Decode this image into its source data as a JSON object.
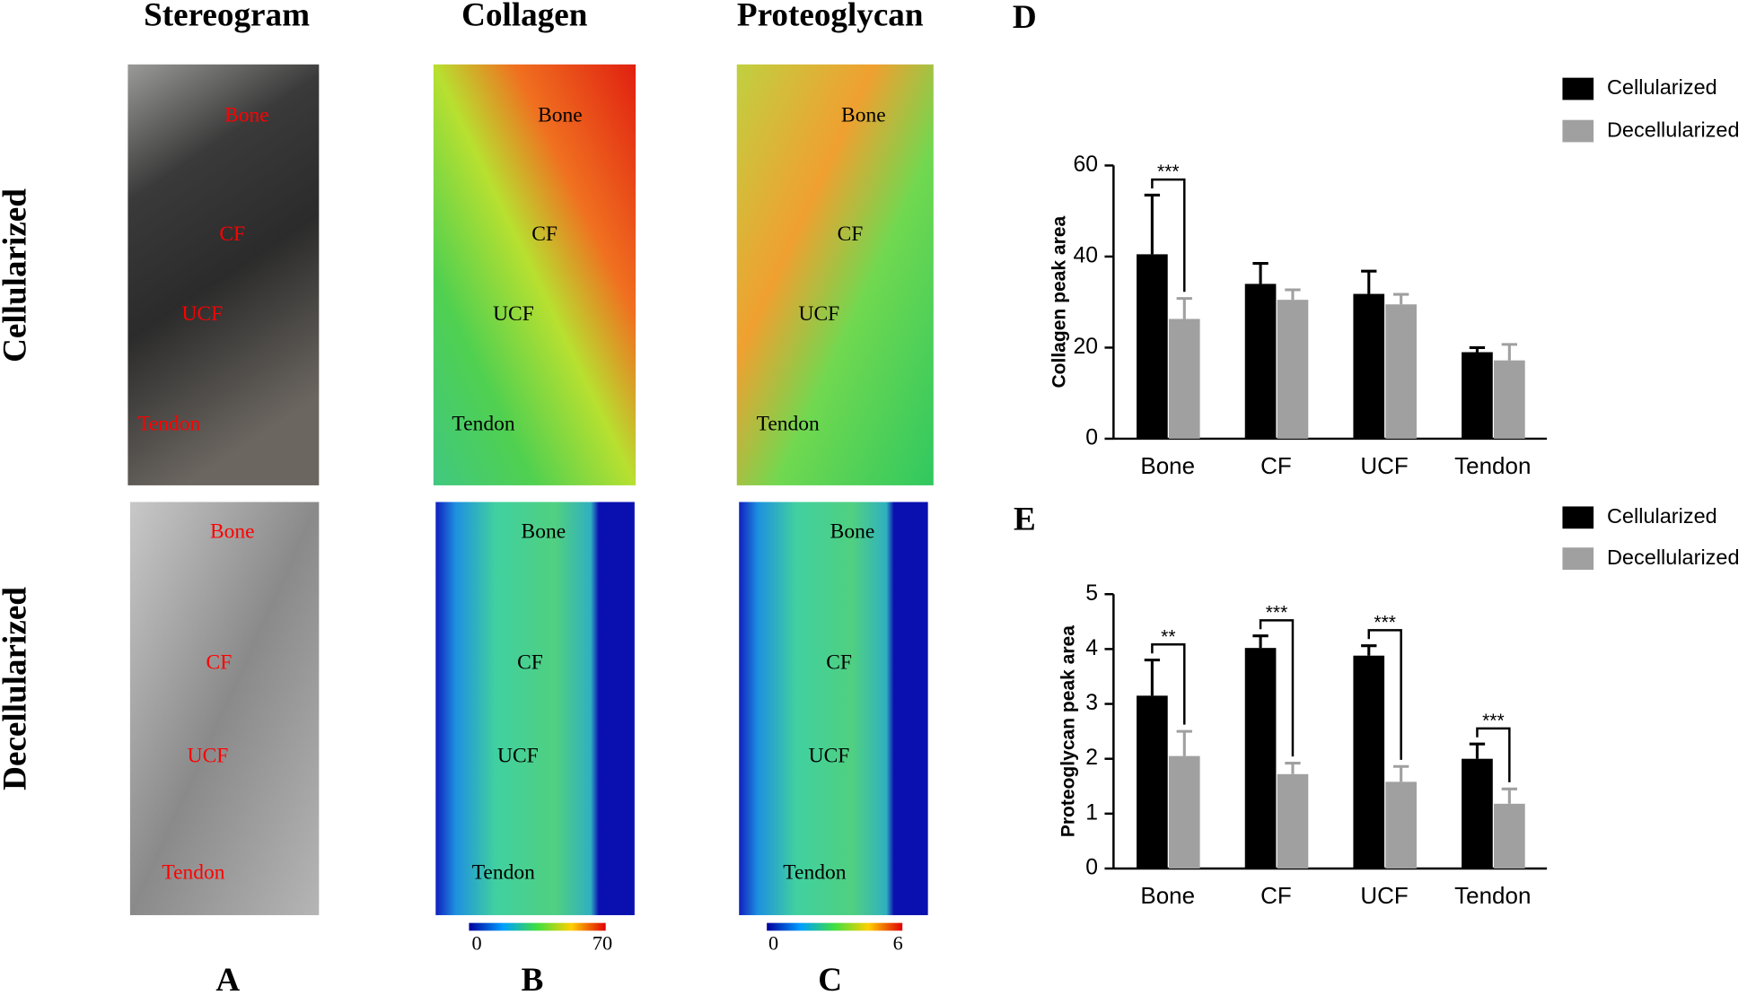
{
  "figure": {
    "columns": [
      "Stereogram",
      "Collagen",
      "Proteoglycan"
    ],
    "rows": [
      "Cellularized",
      "Decellularized"
    ],
    "panels": [
      "A",
      "B",
      "C",
      "D",
      "E"
    ],
    "regions": [
      "Bone",
      "CF",
      "UCF",
      "Tendon"
    ],
    "colorbars": [
      {
        "min": 0,
        "max": 70
      },
      {
        "min": 0,
        "max": 6
      }
    ]
  },
  "chart_data": [
    {
      "type": "bar",
      "ylabel": "Collagen peak area",
      "categories": [
        "Bone",
        "CF",
        "UCF",
        "Tendon"
      ],
      "series": [
        {
          "name": "Cellularized",
          "color": "#000000",
          "values": [
            40.5,
            34,
            31.8,
            19
          ],
          "errors": [
            13,
            4.5,
            5,
            1
          ]
        },
        {
          "name": "Decellularized",
          "color": "#a0a0a0",
          "values": [
            26.3,
            30.5,
            29.5,
            17.2
          ],
          "errors": [
            4.5,
            2.2,
            2.2,
            3.5
          ]
        }
      ],
      "significance": [
        "***",
        null,
        null,
        null
      ],
      "ylim": [
        0,
        60
      ],
      "yticks": [
        0,
        20,
        40,
        60
      ]
    },
    {
      "type": "bar",
      "ylabel": "Proteoglycan peak area",
      "categories": [
        "Bone",
        "CF",
        "UCF",
        "Tendon"
      ],
      "series": [
        {
          "name": "Cellularized",
          "color": "#000000",
          "values": [
            3.15,
            4.02,
            3.88,
            2.0
          ],
          "errors": [
            0.65,
            0.22,
            0.18,
            0.27
          ]
        },
        {
          "name": "Decellularized",
          "color": "#a0a0a0",
          "values": [
            2.05,
            1.72,
            1.58,
            1.18
          ],
          "errors": [
            0.45,
            0.2,
            0.28,
            0.27
          ]
        }
      ],
      "significance": [
        "**",
        "***",
        "***",
        "***"
      ],
      "ylim": [
        0,
        5
      ],
      "yticks": [
        0,
        1,
        2,
        3,
        4,
        5
      ]
    }
  ]
}
